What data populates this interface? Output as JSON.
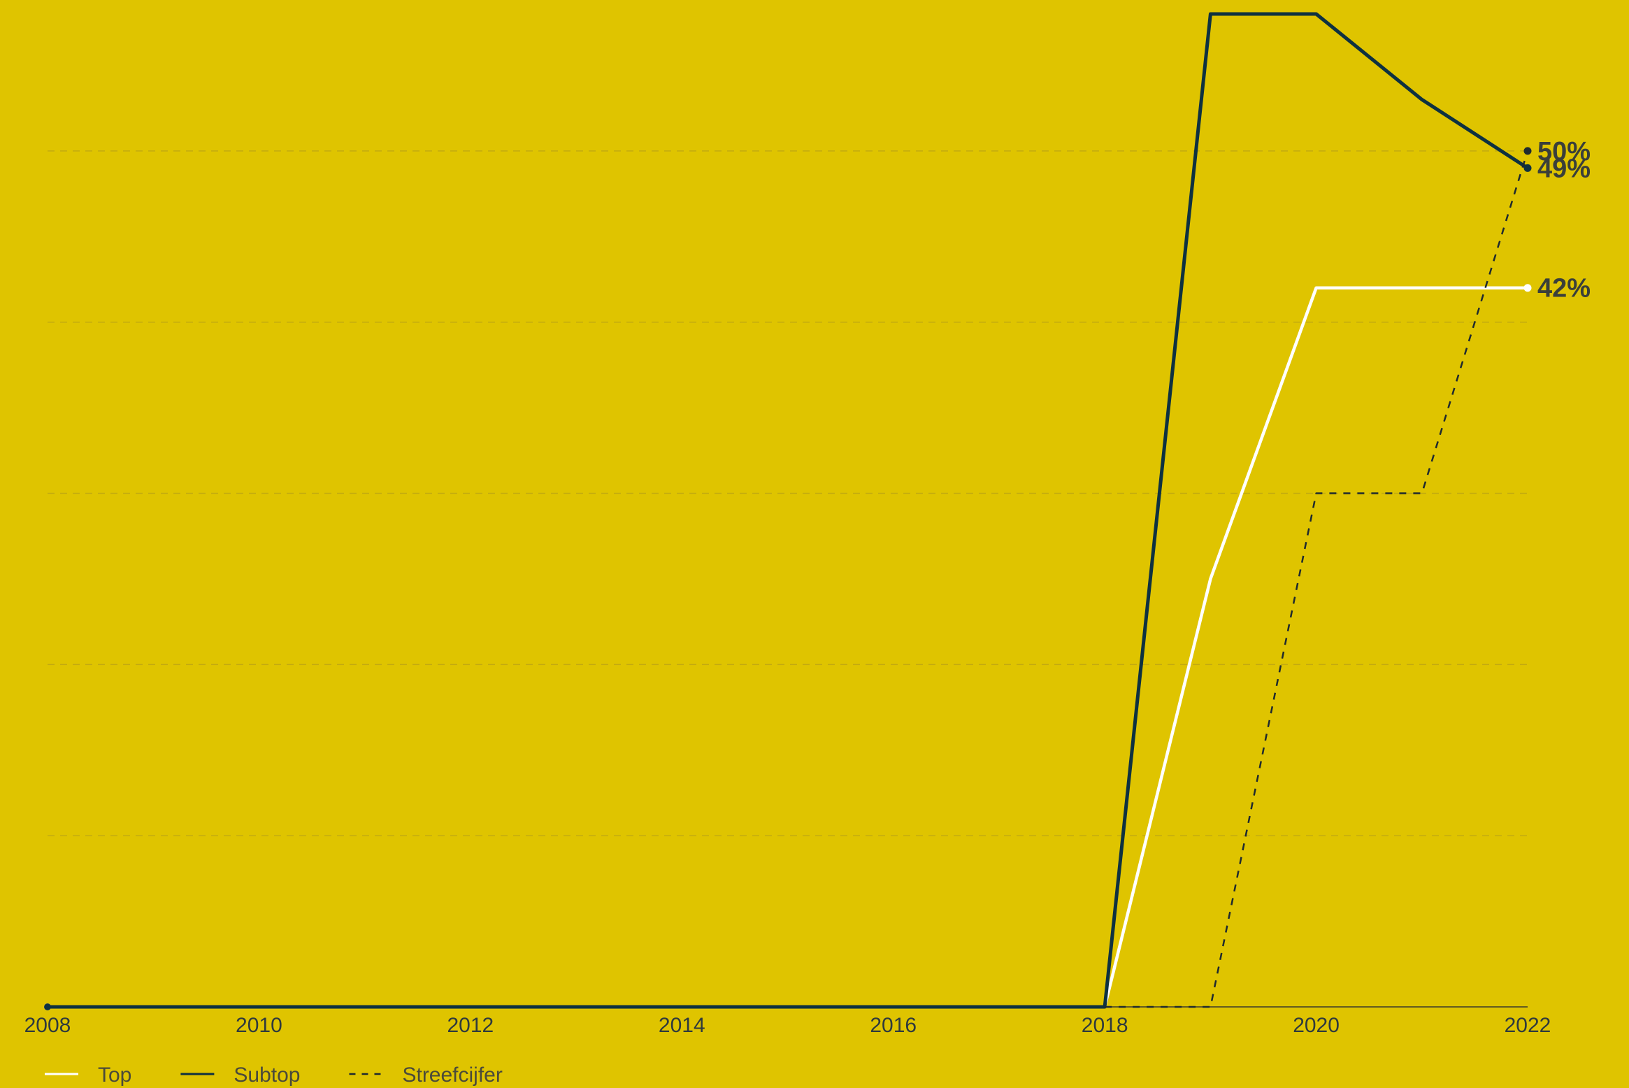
{
  "chart_data": {
    "type": "line",
    "title": "",
    "xlabel": "",
    "ylabel": "",
    "x": [
      2008,
      2009,
      2010,
      2011,
      2012,
      2013,
      2014,
      2015,
      2016,
      2017,
      2018,
      2019,
      2020,
      2021,
      2022
    ],
    "x_ticks": [
      "2008",
      "2010",
      "2012",
      "2014",
      "2016",
      "2018",
      "2020",
      "2022"
    ],
    "ylim": [
      0,
      58
    ],
    "y_gridlines": [
      10,
      20,
      30,
      40,
      50
    ],
    "grid": true,
    "legend_position": "bottom-left",
    "series": [
      {
        "name": "Top",
        "color": "#FFFFFF",
        "style": "solid",
        "values": [
          0,
          0,
          0,
          0,
          0,
          0,
          0,
          0,
          0,
          0,
          0,
          25,
          42,
          42,
          42
        ],
        "end_label": "42%"
      },
      {
        "name": "Subtop",
        "color": "#0E3140",
        "style": "solid",
        "values": [
          0,
          0,
          0,
          0,
          0,
          0,
          0,
          0,
          0,
          0,
          0,
          58,
          58,
          53,
          49
        ],
        "end_label": "49%"
      },
      {
        "name": "Streefcijfer",
        "color": "#1F2A2E",
        "style": "dashed",
        "values": [
          null,
          null,
          null,
          null,
          null,
          null,
          null,
          null,
          null,
          null,
          0,
          0,
          30,
          30,
          50
        ],
        "end_label": "50%"
      }
    ],
    "colors": {
      "background": "#DFC400",
      "grid": "#C2AA10",
      "axis": "#3A3A2A",
      "tick_text": "#2F3A3D",
      "end_label_text": "#3A3F3A"
    }
  }
}
